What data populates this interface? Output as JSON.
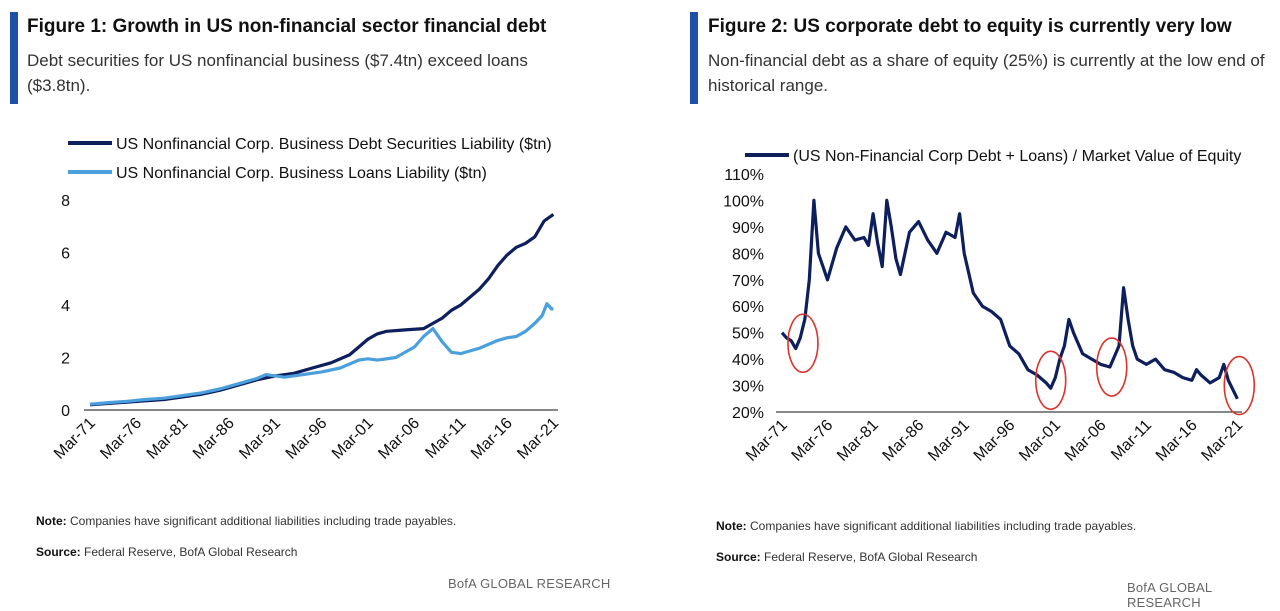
{
  "figure1": {
    "title": "Figure 1: Growth in US non-financial sector financial debt",
    "subtitle": "Debt securities for US nonfinancial business ($7.4tn) exceed loans ($3.8tn).",
    "note_label": "Note:",
    "note_text": " Companies have significant additional liabilities including trade payables.",
    "source_label": "Source:",
    "source_text": " Federal Reserve, BofA Global Research",
    "brand": "BofA GLOBAL RESEARCH"
  },
  "figure2": {
    "title": "Figure 2: US corporate debt to equity is currently very low",
    "subtitle": "Non-financial debt as a share of equity (25%) is currently at the low end of historical range.",
    "note_label": "Note:",
    "note_text": " Companies have significant additional liabilities including trade payables.",
    "source_label": "Source:",
    "source_text": " Federal Reserve, BofA Global Research",
    "brand": "BofA GLOBAL RESEARCH"
  },
  "colors": {
    "accent": "#1f4fa8",
    "series_dark": "#0d1f5c",
    "series_light": "#4a9fdc",
    "circle": "#d9342b"
  },
  "chart_data": [
    {
      "type": "line",
      "xlim": [
        1971,
        2021.5
      ],
      "ylim": [
        0,
        8
      ],
      "yticks": [
        "0",
        "2",
        "4",
        "6",
        "8"
      ],
      "xticks": [
        {
          "label": "Mar-71",
          "x": 1971
        },
        {
          "label": "Mar-76",
          "x": 1976
        },
        {
          "label": "Mar-81",
          "x": 1981
        },
        {
          "label": "Mar-86",
          "x": 1986
        },
        {
          "label": "Mar-91",
          "x": 1991
        },
        {
          "label": "Mar-96",
          "x": 1996
        },
        {
          "label": "Mar-01",
          "x": 2001
        },
        {
          "label": "Mar-06",
          "x": 2006
        },
        {
          "label": "Mar-11",
          "x": 2011
        },
        {
          "label": "Mar-16",
          "x": 2016
        },
        {
          "label": "Mar-21",
          "x": 2021
        }
      ],
      "legend": "top-left",
      "series": [
        {
          "name": "US Nonfinancial Corp. Business Debt Securities Liability ($tn)",
          "color": "#0d1f5c",
          "points": [
            [
              1971,
              0.2
            ],
            [
              1973,
              0.25
            ],
            [
              1975,
              0.3
            ],
            [
              1977,
              0.35
            ],
            [
              1979,
              0.4
            ],
            [
              1981,
              0.5
            ],
            [
              1983,
              0.6
            ],
            [
              1985,
              0.75
            ],
            [
              1987,
              0.95
            ],
            [
              1989,
              1.15
            ],
            [
              1991,
              1.3
            ],
            [
              1993,
              1.4
            ],
            [
              1995,
              1.6
            ],
            [
              1997,
              1.8
            ],
            [
              1999,
              2.1
            ],
            [
              2000,
              2.4
            ],
            [
              2001,
              2.7
            ],
            [
              2002,
              2.9
            ],
            [
              2003,
              3.0
            ],
            [
              2005,
              3.05
            ],
            [
              2007,
              3.1
            ],
            [
              2008,
              3.3
            ],
            [
              2009,
              3.5
            ],
            [
              2010,
              3.8
            ],
            [
              2011,
              4.0
            ],
            [
              2012,
              4.3
            ],
            [
              2013,
              4.6
            ],
            [
              2014,
              5.0
            ],
            [
              2015,
              5.5
            ],
            [
              2016,
              5.9
            ],
            [
              2017,
              6.2
            ],
            [
              2018,
              6.35
            ],
            [
              2019,
              6.6
            ],
            [
              2020,
              7.2
            ],
            [
              2021,
              7.45
            ]
          ]
        },
        {
          "name": "US Nonfinancial Corp. Business Loans Liability ($tn)",
          "color": "#4a9fdc",
          "points": [
            [
              1971,
              0.22
            ],
            [
              1973,
              0.28
            ],
            [
              1975,
              0.33
            ],
            [
              1977,
              0.4
            ],
            [
              1979,
              0.45
            ],
            [
              1981,
              0.55
            ],
            [
              1983,
              0.65
            ],
            [
              1985,
              0.8
            ],
            [
              1987,
              1.0
            ],
            [
              1989,
              1.2
            ],
            [
              1990,
              1.35
            ],
            [
              1991,
              1.3
            ],
            [
              1992,
              1.25
            ],
            [
              1994,
              1.35
            ],
            [
              1996,
              1.45
            ],
            [
              1998,
              1.6
            ],
            [
              2000,
              1.9
            ],
            [
              2001,
              1.95
            ],
            [
              2002,
              1.9
            ],
            [
              2004,
              2.0
            ],
            [
              2006,
              2.4
            ],
            [
              2007,
              2.8
            ],
            [
              2008,
              3.1
            ],
            [
              2009,
              2.6
            ],
            [
              2010,
              2.2
            ],
            [
              2011,
              2.15
            ],
            [
              2012,
              2.25
            ],
            [
              2013,
              2.35
            ],
            [
              2014,
              2.5
            ],
            [
              2015,
              2.65
            ],
            [
              2016,
              2.75
            ],
            [
              2017,
              2.8
            ],
            [
              2018,
              3.0
            ],
            [
              2019,
              3.3
            ],
            [
              2019.8,
              3.6
            ],
            [
              2020.3,
              4.05
            ],
            [
              2020.8,
              3.85
            ],
            [
              2021,
              3.85
            ]
          ]
        }
      ]
    },
    {
      "type": "line",
      "xlim": [
        1971,
        2021.5
      ],
      "ylim": [
        20,
        110
      ],
      "yticks": [
        "20%",
        "30%",
        "40%",
        "50%",
        "60%",
        "70%",
        "80%",
        "90%",
        "100%",
        "110%"
      ],
      "xticks": [
        {
          "label": "Mar-71",
          "x": 1971
        },
        {
          "label": "Mar-76",
          "x": 1976
        },
        {
          "label": "Mar-81",
          "x": 1981
        },
        {
          "label": "Mar-86",
          "x": 1986
        },
        {
          "label": "Mar-91",
          "x": 1991
        },
        {
          "label": "Mar-96",
          "x": 1996
        },
        {
          "label": "Mar-01",
          "x": 2001
        },
        {
          "label": "Mar-06",
          "x": 2006
        },
        {
          "label": "Mar-11",
          "x": 2011
        },
        {
          "label": "Mar-16",
          "x": 2016
        },
        {
          "label": "Mar-21",
          "x": 2021
        }
      ],
      "legend": "top",
      "series": [
        {
          "name": "(US Non-Financial Corp Debt + Loans) / Market Value of Equity",
          "color": "#0d1f5c",
          "points": [
            [
              1971,
              50
            ],
            [
              1971.5,
              48
            ],
            [
              1972,
              47
            ],
            [
              1972.5,
              44
            ],
            [
              1973,
              48
            ],
            [
              1973.5,
              55
            ],
            [
              1974,
              70
            ],
            [
              1974.5,
              100
            ],
            [
              1975,
              80
            ],
            [
              1975.5,
              75
            ],
            [
              1976,
              70
            ],
            [
              1977,
              82
            ],
            [
              1978,
              90
            ],
            [
              1979,
              85
            ],
            [
              1980,
              86
            ],
            [
              1980.5,
              83
            ],
            [
              1981,
              95
            ],
            [
              1981.5,
              84
            ],
            [
              1982,
              75
            ],
            [
              1982.5,
              100
            ],
            [
              1983,
              90
            ],
            [
              1983.5,
              78
            ],
            [
              1984,
              72
            ],
            [
              1985,
              88
            ],
            [
              1986,
              92
            ],
            [
              1987,
              85
            ],
            [
              1988,
              80
            ],
            [
              1989,
              88
            ],
            [
              1990,
              86
            ],
            [
              1990.5,
              95
            ],
            [
              1991,
              80
            ],
            [
              1992,
              65
            ],
            [
              1993,
              60
            ],
            [
              1994,
              58
            ],
            [
              1995,
              55
            ],
            [
              1996,
              45
            ],
            [
              1997,
              42
            ],
            [
              1998,
              36
            ],
            [
              1999,
              34
            ],
            [
              2000,
              31
            ],
            [
              2000.5,
              29
            ],
            [
              2001,
              33
            ],
            [
              2001.5,
              40
            ],
            [
              2002,
              45
            ],
            [
              2002.5,
              55
            ],
            [
              2003,
              50
            ],
            [
              2004,
              42
            ],
            [
              2005,
              40
            ],
            [
              2006,
              38
            ],
            [
              2007,
              37
            ],
            [
              2008,
              45
            ],
            [
              2008.5,
              67
            ],
            [
              2009,
              55
            ],
            [
              2009.5,
              45
            ],
            [
              2010,
              40
            ],
            [
              2011,
              38
            ],
            [
              2012,
              40
            ],
            [
              2013,
              36
            ],
            [
              2014,
              35
            ],
            [
              2015,
              33
            ],
            [
              2016,
              32
            ],
            [
              2016.5,
              36
            ],
            [
              2017,
              34
            ],
            [
              2018,
              31
            ],
            [
              2019,
              33
            ],
            [
              2019.5,
              38
            ],
            [
              2020,
              32
            ],
            [
              2021,
              25
            ]
          ]
        }
      ],
      "annotations": [
        {
          "type": "circle",
          "x": 1973.3,
          "y": 46
        },
        {
          "type": "circle",
          "x": 2000.5,
          "y": 32
        },
        {
          "type": "circle",
          "x": 2007.2,
          "y": 37
        },
        {
          "type": "circle",
          "x": 2021.2,
          "y": 30
        }
      ]
    }
  ]
}
